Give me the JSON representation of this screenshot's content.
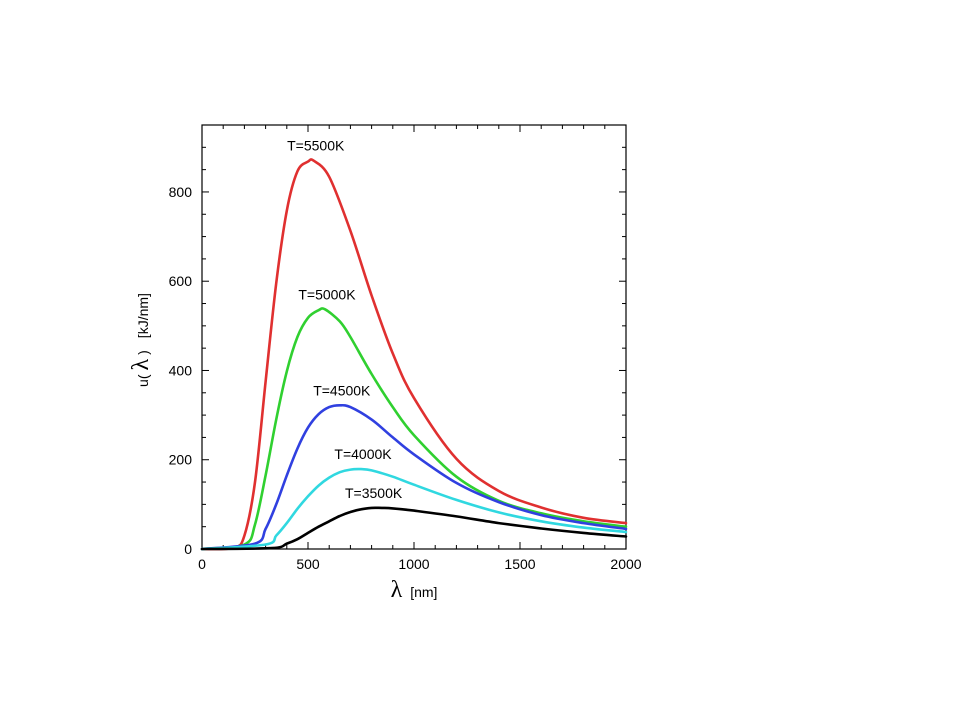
{
  "chart_data": {
    "type": "line",
    "xlabel": {
      "symbol": "λ",
      "unit": "[nm]"
    },
    "ylabel": {
      "prefix": "u(",
      "symbol": "λ",
      "suffix": ")",
      "unit": "[kJ/nm]"
    },
    "xlim": [
      0,
      2000
    ],
    "ylim": [
      0,
      950
    ],
    "xticks": [
      0,
      500,
      1000,
      1500,
      2000
    ],
    "yticks": [
      0,
      200,
      400,
      600,
      800
    ],
    "grid": false,
    "series": [
      {
        "name": "T=5500K",
        "color": "#e03030",
        "x": [
          0,
          150,
          200,
          250,
          300,
          350,
          400,
          450,
          500,
          527,
          600,
          700,
          800,
          900,
          1000,
          1200,
          1400,
          1600,
          1800,
          2000
        ],
        "y": [
          0,
          3,
          30,
          150,
          375,
          595,
          758,
          846,
          868,
          870,
          834,
          713,
          568,
          438,
          338,
          202,
          130,
          93,
          70,
          58
        ]
      },
      {
        "name": "T=5000K",
        "color": "#30d030",
        "x": [
          0,
          200,
          250,
          300,
          350,
          400,
          450,
          500,
          550,
          580,
          650,
          700,
          800,
          900,
          1000,
          1200,
          1400,
          1600,
          1800,
          2000
        ],
        "y": [
          0,
          10,
          55,
          165,
          290,
          398,
          475,
          518,
          535,
          537,
          510,
          475,
          392,
          318,
          255,
          162,
          108,
          80,
          62,
          50
        ]
      },
      {
        "name": "T=4500K",
        "color": "#3040e0",
        "x": [
          0,
          250,
          300,
          350,
          400,
          450,
          500,
          550,
          600,
          650,
          700,
          800,
          900,
          1000,
          1200,
          1400,
          1600,
          1800,
          2000
        ],
        "y": [
          0,
          12,
          45,
          100,
          165,
          225,
          272,
          302,
          318,
          322,
          318,
          290,
          250,
          212,
          148,
          105,
          76,
          58,
          45
        ]
      },
      {
        "name": "T=4000K",
        "color": "#30d8e0",
        "x": [
          0,
          300,
          350,
          400,
          450,
          500,
          550,
          600,
          650,
          700,
          750,
          800,
          900,
          1000,
          1200,
          1400,
          1600,
          1800,
          2000
        ],
        "y": [
          0,
          10,
          30,
          58,
          90,
          118,
          142,
          160,
          172,
          178,
          179,
          176,
          162,
          144,
          110,
          82,
          62,
          48,
          38
        ]
      },
      {
        "name": "T=3500K",
        "color": "#000000",
        "x": [
          0,
          330,
          400,
          450,
          500,
          550,
          600,
          650,
          700,
          750,
          800,
          850,
          900,
          1000,
          1200,
          1400,
          1600,
          1800,
          2000
        ],
        "y": [
          0,
          2,
          12,
          22,
          36,
          50,
          62,
          74,
          83,
          89,
          92,
          92,
          91,
          86,
          73,
          58,
          46,
          36,
          28
        ]
      }
    ]
  }
}
